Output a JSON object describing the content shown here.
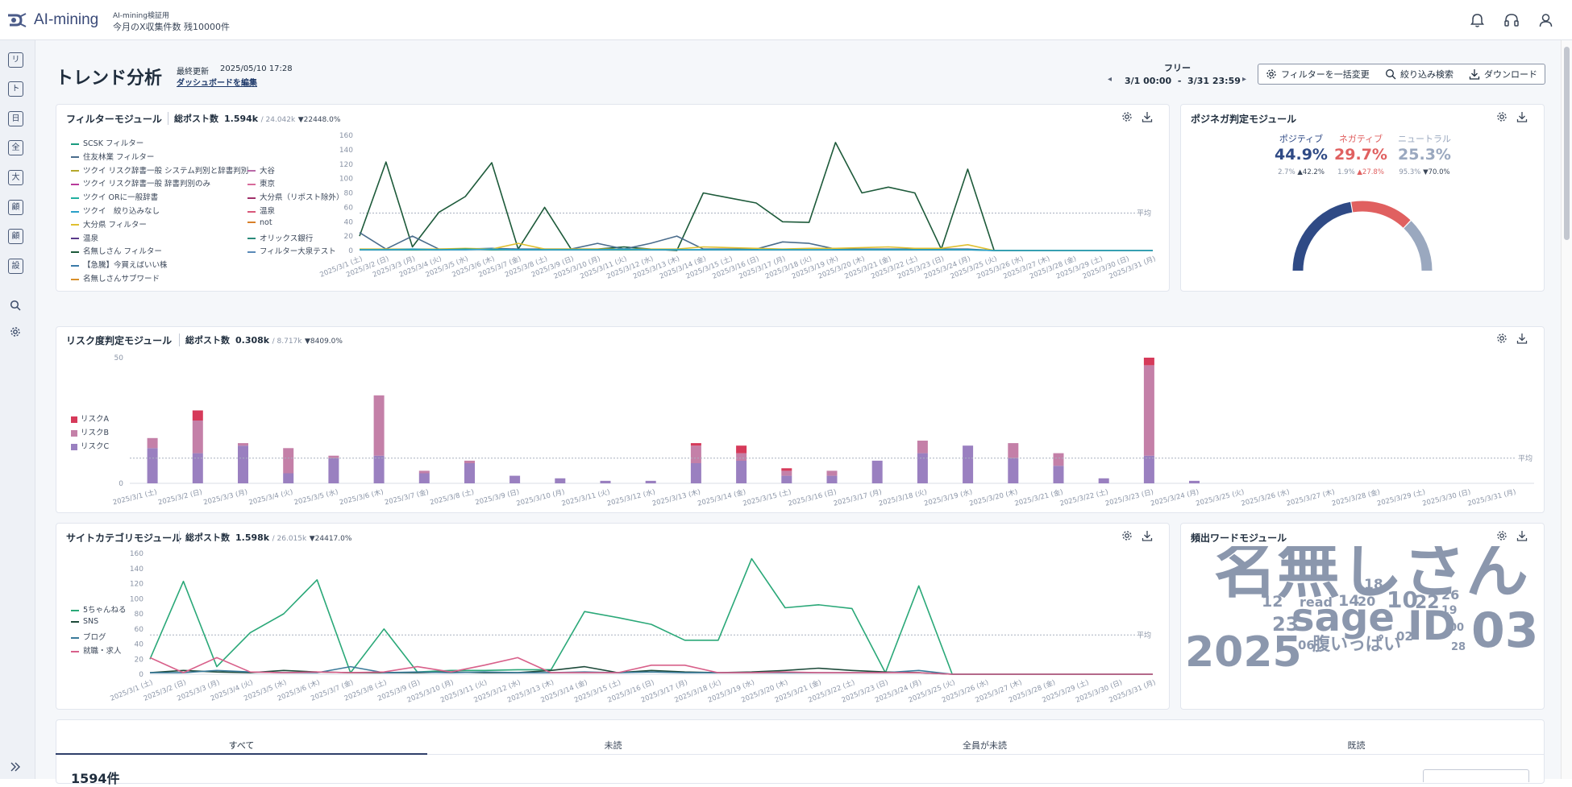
{
  "header": {
    "logo_text": "AI-mining",
    "account_name": "AI-mining検証用",
    "account_quota": "今月のX収集件数 残10000件",
    "icons": [
      "bell-icon",
      "headset-icon",
      "user-icon"
    ]
  },
  "sidebar": {
    "items": [
      {
        "label": "リ"
      },
      {
        "label": "ト"
      },
      {
        "label": "日"
      },
      {
        "label": "全"
      },
      {
        "label": "大"
      },
      {
        "label": "顧"
      },
      {
        "label": "顧"
      },
      {
        "label": "設"
      }
    ],
    "search_icon": "search-icon",
    "settings_icon": "gear-icon",
    "expand_icon": "double-chevron-right-icon"
  },
  "page": {
    "title": "トレンド分析",
    "last_updated_label": "最終更新",
    "last_updated": "2025/05/10 17:28",
    "edit_dashboard": "ダッシュボードを編集",
    "period_name": "フリー",
    "period_range": "3/1 00:00  -  3/31 23:59",
    "buttons": {
      "filter_bulk": "フィルターを一括変更",
      "narrow_search": "絞り込み検索",
      "download": "ダウンロード"
    }
  },
  "filter_module": {
    "title": "フィルターモジュール",
    "total_label": "総ポスト数",
    "total": "1.594k",
    "prev": "/ 24.042k",
    "change": "▼22448.0%",
    "avg_label": "平均",
    "legend": [
      {
        "name": "SCSK フィルター",
        "color": "#1a9b7f"
      },
      {
        "name": "住友林業 フィルター",
        "color": "#4a6c8c"
      },
      {
        "name": "ツクイ リスク辞書一般 システム判別と辞書判別",
        "color": "#b5a82c"
      },
      {
        "name": "大谷",
        "color": "#b96aa8"
      },
      {
        "name": "ツクイ リスク辞書一般 辞書判別のみ",
        "color": "#b83a9a"
      },
      {
        "name": "東京",
        "color": "#d86a9a"
      },
      {
        "name": "ツクイ ORに一般辞書",
        "color": "#22b0a0"
      },
      {
        "name": "大分県（リポスト除外）",
        "color": "#a0306a"
      },
      {
        "name": "ツクイ　絞り込みなし",
        "color": "#2aa0c8"
      },
      {
        "name": "温泉",
        "color": "#d8587a"
      },
      {
        "name": "大分県 フィルター",
        "color": "#e0c030"
      },
      {
        "name": "not",
        "color": "#d8802a"
      },
      {
        "name": "温泉",
        "color": "#5a3a8a"
      },
      {
        "name": "オリックス銀行",
        "color": "#2a8a7a"
      },
      {
        "name": "名無しさん フィルター",
        "color": "#1d5a3a"
      },
      {
        "name": "フィルター大泉テスト",
        "color": "#5a8ab8"
      },
      {
        "name": "【急騰】今買えばいい株",
        "color": "#3a7aa8"
      },
      {
        "name": "名無しさんサブワード",
        "color": "#d8902a"
      }
    ]
  },
  "posinega_module": {
    "title": "ポジネガ判定モジュール",
    "positive_label": "ポジティブ",
    "positive_value": "44.9%",
    "positive_prev": "2.7%",
    "positive_change": "▲42.2%",
    "negative_label": "ネガティブ",
    "negative_value": "29.7%",
    "negative_prev": "1.9%",
    "negative_change": "▲27.8%",
    "neutral_label": "ニュートラル",
    "neutral_value": "25.3%",
    "neutral_prev": "95.3%",
    "neutral_change": "▼70.0%",
    "colors": {
      "positive": "#2f4a85",
      "negative": "#e06060",
      "neutral": "#9aa8bf"
    }
  },
  "risk_module": {
    "title": "リスク度判定モジュール",
    "total_label": "総ポスト数",
    "total": "0.308k",
    "prev": "/ 8.717k",
    "change": "▼8409.0%",
    "avg_label": "平均",
    "legend": [
      {
        "name": "リスクA",
        "color": "#d63a5a"
      },
      {
        "name": "リスクB",
        "color": "#c480a8"
      },
      {
        "name": "リスクC",
        "color": "#9a80c0"
      }
    ]
  },
  "site_module": {
    "title": "サイトカテゴリモジュール",
    "total_label": "総ポスト数",
    "total": "1.598k",
    "prev": "/ 26.015k",
    "change": "▼24417.0%",
    "avg_label": "平均",
    "legend": [
      {
        "name": "5ちゃんねる",
        "color": "#2aa878"
      },
      {
        "name": "SNS",
        "color": "#1d4a3a"
      },
      {
        "name": "ブログ",
        "color": "#3a7a9a"
      },
      {
        "name": "就職・求人",
        "color": "#d8608a"
      }
    ]
  },
  "word_module": {
    "title": "頻出ワードモジュール",
    "words": [
      "名無しさん",
      "sage",
      "ID",
      "03",
      "2025",
      "腹いっぱい",
      "10",
      "12",
      "read",
      "14",
      "20",
      "22",
      "26",
      "19",
      "23",
      "18",
      "02",
      "00",
      "06",
      "28"
    ]
  },
  "tabs": [
    {
      "label": "すべて"
    },
    {
      "label": "未読"
    },
    {
      "label": "全員が未読"
    },
    {
      "label": "既読"
    }
  ],
  "result_count": "1594件",
  "chart_data": [
    {
      "type": "line",
      "name": "filter_module",
      "x": [
        "2025/3/1 (土)",
        "2025/3/2 (日)",
        "2025/3/3 (月)",
        "2025/3/4 (火)",
        "2025/3/5 (水)",
        "2025/3/6 (木)",
        "2025/3/7 (金)",
        "2025/3/8 (土)",
        "2025/3/9 (日)",
        "2025/3/10 (月)",
        "2025/3/11 (火)",
        "2025/3/12 (水)",
        "2025/3/13 (木)",
        "2025/3/14 (金)",
        "2025/3/15 (土)",
        "2025/3/16 (日)",
        "2025/3/17 (月)",
        "2025/3/18 (火)",
        "2025/3/19 (水)",
        "2025/3/20 (木)",
        "2025/3/21 (金)",
        "2025/3/22 (土)",
        "2025/3/23 (日)",
        "2025/3/24 (月)",
        "2025/3/25 (火)",
        "2025/3/26 (水)",
        "2025/3/27 (木)",
        "2025/3/28 (金)",
        "2025/3/29 (土)",
        "2025/3/30 (日)",
        "2025/3/31 (月)"
      ],
      "ylim": [
        0,
        160
      ],
      "yticks": [
        0,
        20,
        40,
        60,
        80,
        100,
        120,
        140,
        160
      ],
      "average": 52,
      "series": [
        {
          "name": "名無しさん フィルター",
          "color": "#1d5a3a",
          "values": [
            20,
            123,
            5,
            53,
            75,
            122,
            2,
            60,
            2,
            2,
            5,
            2,
            0,
            80,
            73,
            66,
            40,
            39,
            150,
            80,
            88,
            80,
            2,
            113,
            0,
            0,
            0,
            0,
            0,
            0,
            0
          ]
        },
        {
          "name": "住友林業 フィルター",
          "color": "#4a6c8c",
          "values": [
            25,
            2,
            20,
            2,
            2,
            3,
            2,
            2,
            2,
            10,
            2,
            10,
            20,
            2,
            2,
            2,
            12,
            10,
            2,
            2,
            2,
            2,
            2,
            2,
            0,
            0,
            0,
            0,
            0,
            0,
            0
          ]
        },
        {
          "name": "大分県 フィルター",
          "color": "#e0c030",
          "values": [
            2,
            2,
            2,
            2,
            3,
            2,
            10,
            2,
            2,
            2,
            2,
            2,
            2,
            5,
            4,
            3,
            2,
            3,
            3,
            4,
            5,
            3,
            3,
            8,
            0,
            0,
            0,
            0,
            0,
            0,
            0
          ]
        },
        {
          "name": "SCSK フィルター",
          "color": "#1a9b7f",
          "values": [
            1,
            1,
            1,
            1,
            2,
            1,
            1,
            1,
            1,
            1,
            1,
            1,
            1,
            1,
            1,
            1,
            1,
            1,
            1,
            1,
            1,
            1,
            1,
            1,
            0,
            0,
            0,
            0,
            0,
            0,
            0
          ]
        },
        {
          "name": "ツクイ　絞り込みなし",
          "color": "#2aa0c8",
          "values": [
            1,
            1,
            2,
            1,
            1,
            2,
            1,
            1,
            1,
            1,
            2,
            1,
            1,
            1,
            1,
            1,
            1,
            1,
            1,
            1,
            1,
            1,
            1,
            1,
            0,
            0,
            0,
            0,
            0,
            0,
            0
          ]
        }
      ]
    },
    {
      "type": "pie",
      "name": "posinega_module",
      "categories": [
        "ポジティブ",
        "ネガティブ",
        "ニュートラル"
      ],
      "values": [
        44.9,
        29.7,
        25.3
      ]
    },
    {
      "type": "bar",
      "name": "risk_module",
      "stacked": true,
      "categories": [
        "2025/3/1 (土)",
        "2025/3/2 (日)",
        "2025/3/3 (月)",
        "2025/3/4 (火)",
        "2025/3/5 (水)",
        "2025/3/6 (木)",
        "2025/3/7 (金)",
        "2025/3/8 (土)",
        "2025/3/9 (日)",
        "2025/3/10 (月)",
        "2025/3/11 (火)",
        "2025/3/12 (水)",
        "2025/3/13 (木)",
        "2025/3/14 (金)",
        "2025/3/15 (土)",
        "2025/3/16 (日)",
        "2025/3/17 (月)",
        "2025/3/18 (火)",
        "2025/3/19 (水)",
        "2025/3/20 (木)",
        "2025/3/21 (金)",
        "2025/3/22 (土)",
        "2025/3/23 (日)",
        "2025/3/24 (月)",
        "2025/3/25 (火)",
        "2025/3/26 (水)",
        "2025/3/27 (木)",
        "2025/3/28 (金)",
        "2025/3/29 (土)",
        "2025/3/30 (日)",
        "2025/3/31 (月)"
      ],
      "ylim": [
        0,
        50
      ],
      "yticks": [
        0,
        50
      ],
      "average": 10,
      "series": [
        {
          "name": "リスクC",
          "color": "#9a80c0",
          "values": [
            14,
            12,
            15,
            4,
            10,
            11,
            4,
            8,
            3,
            2,
            1,
            1,
            8,
            9,
            3,
            3,
            9,
            12,
            15,
            10,
            7,
            2,
            11,
            1,
            0,
            0,
            0,
            0,
            0,
            0,
            0
          ]
        },
        {
          "name": "リスクB",
          "color": "#c480a8",
          "values": [
            4,
            13,
            1,
            10,
            1,
            24,
            1,
            1,
            0,
            0,
            0,
            0,
            7,
            3,
            2,
            2,
            0,
            5,
            0,
            6,
            5,
            0,
            36,
            0,
            0,
            0,
            0,
            0,
            0,
            0,
            0
          ]
        },
        {
          "name": "リスクA",
          "color": "#d63a5a",
          "values": [
            0,
            4,
            0,
            0,
            0,
            0,
            0,
            0,
            0,
            0,
            0,
            0,
            1,
            3,
            1,
            0,
            0,
            0,
            0,
            0,
            0,
            0,
            3,
            0,
            0,
            0,
            0,
            0,
            0,
            0,
            0
          ]
        }
      ]
    },
    {
      "type": "line",
      "name": "site_module",
      "x": [
        "2025/3/1 (土)",
        "2025/3/2 (日)",
        "2025/3/3 (月)",
        "2025/3/4 (火)",
        "2025/3/5 (水)",
        "2025/3/6 (木)",
        "2025/3/7 (金)",
        "2025/3/8 (土)",
        "2025/3/9 (日)",
        "2025/3/10 (月)",
        "2025/3/11 (火)",
        "2025/3/12 (水)",
        "2025/3/13 (木)",
        "2025/3/14 (金)",
        "2025/3/15 (土)",
        "2025/3/16 (日)",
        "2025/3/17 (月)",
        "2025/3/18 (火)",
        "2025/3/19 (水)",
        "2025/3/20 (木)",
        "2025/3/21 (金)",
        "2025/3/22 (土)",
        "2025/3/23 (日)",
        "2025/3/24 (月)",
        "2025/3/25 (火)",
        "2025/3/26 (水)",
        "2025/3/27 (木)",
        "2025/3/28 (金)",
        "2025/3/29 (土)",
        "2025/3/30 (日)",
        "2025/3/31 (月)"
      ],
      "ylim": [
        0,
        160
      ],
      "yticks": [
        0,
        20,
        40,
        60,
        80,
        100,
        120,
        140,
        160
      ],
      "average": 52,
      "series": [
        {
          "name": "5ちゃんねる",
          "color": "#2aa878",
          "values": [
            20,
            123,
            10,
            55,
            80,
            125,
            2,
            60,
            3,
            5,
            5,
            6,
            6,
            83,
            75,
            66,
            45,
            45,
            153,
            88,
            92,
            87,
            2,
            117,
            0,
            0,
            0,
            0,
            0,
            0,
            0
          ]
        },
        {
          "name": "SNS",
          "color": "#1d4a3a",
          "values": [
            2,
            5,
            3,
            2,
            5,
            3,
            2,
            2,
            2,
            3,
            2,
            2,
            5,
            10,
            2,
            5,
            3,
            2,
            3,
            5,
            8,
            5,
            3,
            2,
            0,
            0,
            0,
            0,
            0,
            0,
            0
          ]
        },
        {
          "name": "ブログ",
          "color": "#3a7a9a",
          "values": [
            2,
            2,
            5,
            3,
            2,
            2,
            10,
            2,
            3,
            2,
            3,
            2,
            2,
            3,
            2,
            3,
            2,
            2,
            2,
            2,
            2,
            2,
            2,
            5,
            0,
            0,
            0,
            0,
            0,
            0,
            0
          ]
        },
        {
          "name": "就職・求人",
          "color": "#d8608a",
          "values": [
            22,
            2,
            22,
            3,
            2,
            3,
            2,
            3,
            10,
            3,
            12,
            22,
            2,
            2,
            2,
            12,
            12,
            2,
            2,
            3,
            2,
            2,
            2,
            2,
            0,
            0,
            0,
            0,
            0,
            0,
            0
          ]
        }
      ]
    }
  ]
}
